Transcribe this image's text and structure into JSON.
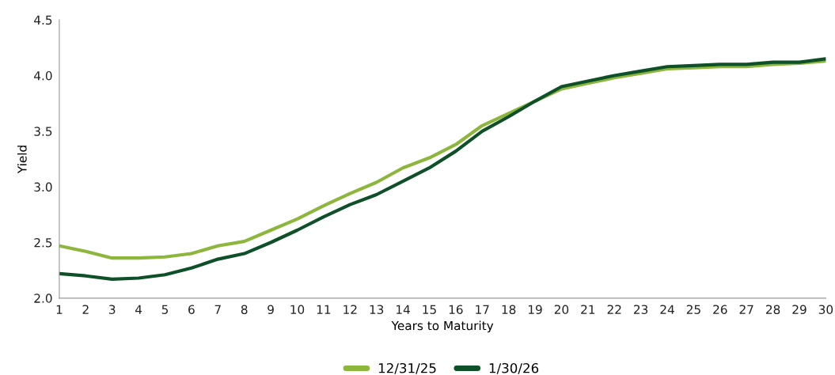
{
  "chart_data": {
    "type": "line",
    "xlabel": "Years to Maturity",
    "ylabel": "Yield",
    "x": [
      1,
      2,
      3,
      4,
      5,
      6,
      7,
      8,
      9,
      10,
      11,
      12,
      13,
      14,
      15,
      16,
      17,
      18,
      19,
      20,
      21,
      22,
      23,
      24,
      25,
      26,
      27,
      28,
      29,
      30
    ],
    "xlim": [
      1,
      30
    ],
    "xticks": [
      1,
      2,
      3,
      4,
      5,
      6,
      7,
      8,
      9,
      10,
      11,
      12,
      13,
      14,
      15,
      16,
      17,
      18,
      19,
      20,
      21,
      22,
      23,
      24,
      25,
      26,
      27,
      28,
      29,
      30
    ],
    "ylim": [
      2.0,
      4.5
    ],
    "yticks": [
      {
        "value": 2.0,
        "label": "2.0"
      },
      {
        "value": 2.5,
        "label": "2.5"
      },
      {
        "value": 3.0,
        "label": "3.0"
      },
      {
        "value": 3.5,
        "label": "3.5"
      },
      {
        "value": 4.0,
        "label": "4.0"
      },
      {
        "value": 4.5,
        "label": "4.5"
      }
    ],
    "series": [
      {
        "name": "12/31/25",
        "color": "#8cb63c",
        "values": [
          2.47,
          2.42,
          2.36,
          2.36,
          2.37,
          2.4,
          2.47,
          2.51,
          2.61,
          2.71,
          2.83,
          2.94,
          3.04,
          3.17,
          3.26,
          3.38,
          3.55,
          3.66,
          3.77,
          3.88,
          3.93,
          3.98,
          4.02,
          4.06,
          4.07,
          4.08,
          4.08,
          4.1,
          4.11,
          4.13
        ]
      },
      {
        "name": "1/30/26",
        "color": "#0e5028",
        "values": [
          2.22,
          2.2,
          2.17,
          2.18,
          2.21,
          2.27,
          2.35,
          2.4,
          2.5,
          2.61,
          2.73,
          2.84,
          2.93,
          3.05,
          3.17,
          3.32,
          3.5,
          3.63,
          3.77,
          3.9,
          3.95,
          4.0,
          4.04,
          4.08,
          4.09,
          4.1,
          4.1,
          4.12,
          4.12,
          4.15
        ]
      }
    ],
    "grid": false,
    "legend": "bottom",
    "marker": "none",
    "line_style": "solid"
  }
}
